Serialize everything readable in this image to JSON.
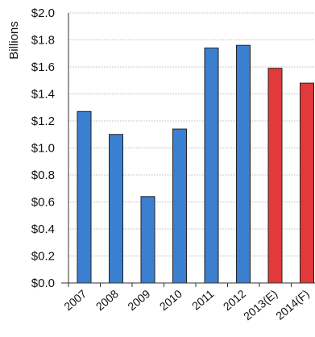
{
  "chart_data": {
    "type": "bar",
    "ylabel": "Billions",
    "categories": [
      "2007",
      "2008",
      "2009",
      "2010",
      "2011",
      "2012",
      "2013(E)",
      "2014(F)"
    ],
    "values": [
      1.27,
      1.1,
      0.64,
      1.14,
      1.74,
      1.76,
      1.59,
      1.48
    ],
    "bar_colors": [
      "#3a7fd0",
      "#3a7fd0",
      "#3a7fd0",
      "#3a7fd0",
      "#3a7fd0",
      "#3a7fd0",
      "#e23a3a",
      "#e23a3a"
    ],
    "ylim": [
      0,
      2.0
    ],
    "yticks": [
      {
        "value": 0.0,
        "label": "$0.0"
      },
      {
        "value": 0.2,
        "label": "$0.2"
      },
      {
        "value": 0.4,
        "label": "$0.4"
      },
      {
        "value": 0.6,
        "label": "$0.6"
      },
      {
        "value": 0.8,
        "label": "$0.8"
      },
      {
        "value": 1.0,
        "label": "$1.0"
      },
      {
        "value": 1.2,
        "label": "$1.2"
      },
      {
        "value": 1.4,
        "label": "$1.4"
      },
      {
        "value": 1.6,
        "label": "$1.6"
      },
      {
        "value": 1.8,
        "label": "$1.8"
      },
      {
        "value": 2.0,
        "label": "$2.0"
      }
    ],
    "grid": true,
    "legend": "none"
  }
}
